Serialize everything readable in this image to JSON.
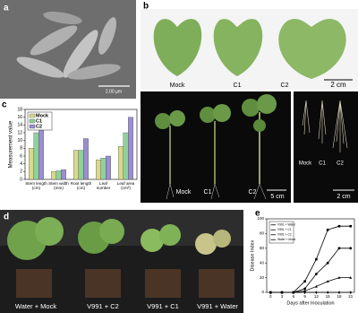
{
  "panel_labels": [
    "a",
    "b",
    "c",
    "d",
    "e"
  ],
  "a": {
    "scale_bar": "2.00 µm"
  },
  "b": {
    "leaves": {
      "labels": [
        "Mock",
        "C1",
        "C2"
      ],
      "scale_bar": "2 cm"
    },
    "plants": {
      "labels": [
        "Mock",
        "C1",
        "C2"
      ],
      "scale_bar": "5 cm"
    },
    "roots": {
      "labels": [
        "Mock",
        "C1",
        "C2"
      ],
      "scale_bar": "2 cm"
    }
  },
  "d": {
    "labels": [
      "Water + Mock",
      "V991 + C2",
      "V991 + C1",
      "V991 + Water"
    ]
  },
  "chart_data": [
    {
      "type": "bar",
      "ylabel": "Measurement value",
      "categories": [
        "Stem length (cm)",
        "Stem width (mm)",
        "Root length (cm)",
        "Leaf number",
        "Leaf area (cm²)"
      ],
      "series": [
        {
          "name": "Mock",
          "color": "#d8d98c",
          "values": [
            8,
            2,
            7.5,
            5,
            8.5
          ]
        },
        {
          "name": "C1",
          "color": "#8fd19a",
          "values": [
            12,
            2.2,
            7.5,
            5.5,
            12
          ]
        },
        {
          "name": "C2",
          "color": "#9b8fcf",
          "values": [
            14.8,
            2.5,
            10.5,
            6,
            16
          ]
        }
      ],
      "ylim": [
        0,
        18
      ],
      "yticks": [
        0,
        2,
        4,
        6,
        8,
        10,
        12,
        14,
        16,
        18
      ],
      "legend": "upper left"
    },
    {
      "type": "line",
      "xlabel": "Days after Inoculation",
      "ylabel": "Disease Index",
      "x": [
        0,
        3,
        6,
        9,
        12,
        15,
        18,
        21
      ],
      "series": [
        {
          "name": "V991 + Water",
          "color": "#000000",
          "values": [
            0,
            0,
            0,
            15,
            45,
            85,
            90,
            90
          ]
        },
        {
          "name": "V991 + C1",
          "color": "#000000",
          "values": [
            0,
            0,
            0,
            5,
            25,
            40,
            60,
            60
          ]
        },
        {
          "name": "V991 + C2",
          "color": "#000000",
          "values": [
            0,
            0,
            0,
            2,
            8,
            15,
            20,
            20
          ]
        },
        {
          "name": "Water + Mock",
          "color": "#000000",
          "values": [
            0,
            0,
            0,
            0,
            0,
            0,
            0,
            0
          ]
        }
      ],
      "xlim": [
        -1,
        22
      ],
      "ylim": [
        0,
        100
      ],
      "xticks": [
        0,
        3,
        6,
        9,
        12,
        15,
        18,
        21
      ],
      "yticks": [
        0,
        20,
        40,
        60,
        80,
        100
      ],
      "legend": "upper left"
    }
  ]
}
